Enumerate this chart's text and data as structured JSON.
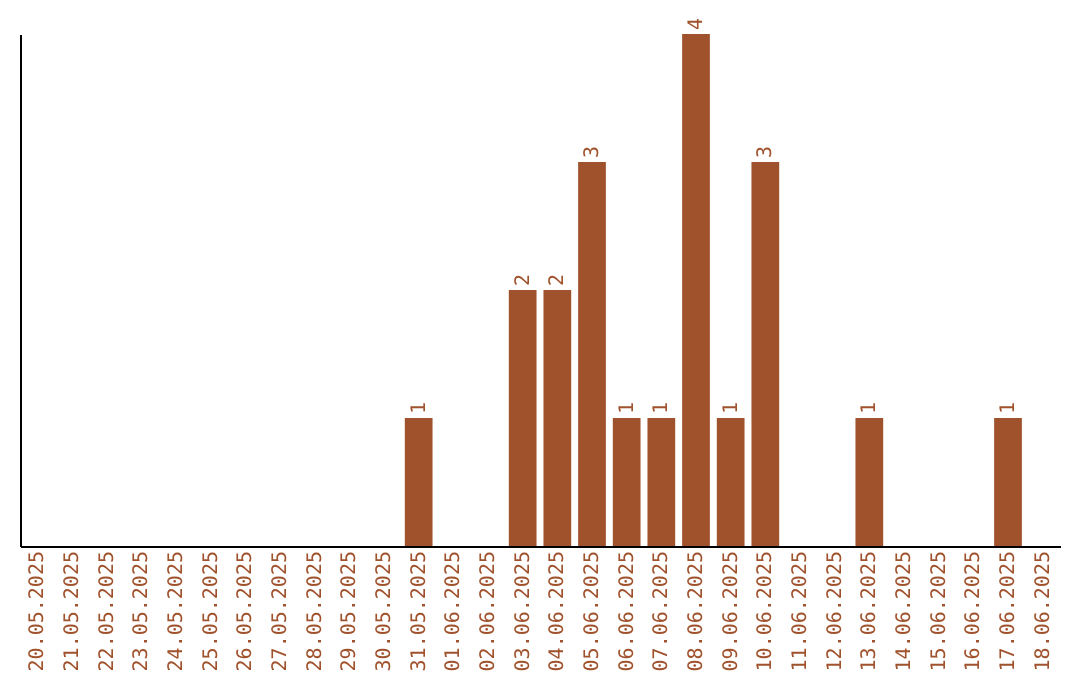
{
  "chart_data": {
    "type": "bar",
    "categories": [
      "20.05.2025",
      "21.05.2025",
      "22.05.2025",
      "23.05.2025",
      "24.05.2025",
      "25.05.2025",
      "26.05.2025",
      "27.05.2025",
      "28.05.2025",
      "29.05.2025",
      "30.05.2025",
      "31.05.2025",
      "01.06.2025",
      "02.06.2025",
      "03.06.2025",
      "04.06.2025",
      "05.06.2025",
      "06.06.2025",
      "07.06.2025",
      "08.06.2025",
      "09.06.2025",
      "10.06.2025",
      "11.06.2025",
      "12.06.2025",
      "13.06.2025",
      "14.06.2025",
      "15.06.2025",
      "16.06.2025",
      "17.06.2025",
      "18.06.2025"
    ],
    "values": [
      0,
      0,
      0,
      0,
      0,
      0,
      0,
      0,
      0,
      0,
      0,
      1,
      0,
      0,
      2,
      2,
      3,
      1,
      1,
      4,
      1,
      3,
      0,
      0,
      1,
      0,
      0,
      0,
      1,
      0
    ],
    "value_labels": [
      null,
      null,
      null,
      null,
      null,
      null,
      null,
      null,
      null,
      null,
      null,
      "1",
      null,
      null,
      "2",
      "2",
      "3",
      "1",
      "1",
      "4",
      "1",
      "3",
      null,
      null,
      "1",
      null,
      null,
      null,
      "1",
      null
    ],
    "color": "#a0522d",
    "tick_labels": "x",
    "grid": false
  }
}
